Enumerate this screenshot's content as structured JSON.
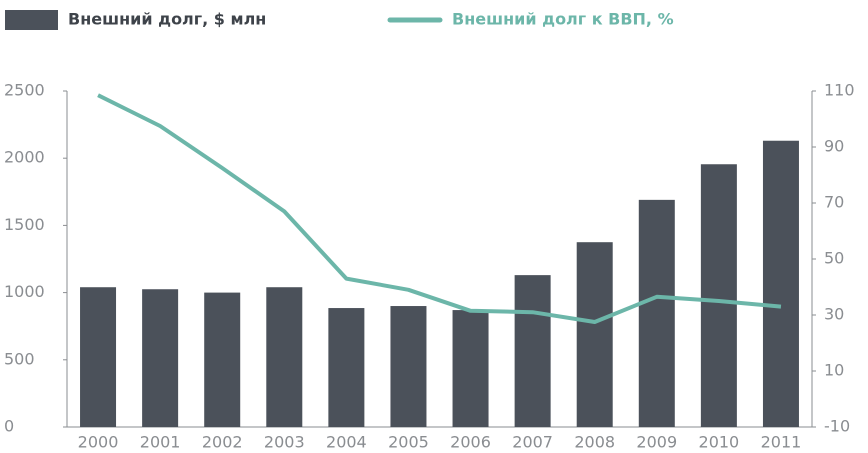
{
  "chart_data": {
    "type": "bar_line",
    "categories": [
      "2000",
      "2001",
      "2002",
      "2003",
      "2004",
      "2005",
      "2006",
      "2007",
      "2008",
      "2009",
      "2010",
      "2011"
    ],
    "series": [
      {
        "name": "Внешний долг, $ млн",
        "type": "bar",
        "color": "#4b515a",
        "values": [
          1040,
          1025,
          1000,
          1040,
          885,
          900,
          870,
          1130,
          1375,
          1690,
          1955,
          2130
        ]
      },
      {
        "name": "Внешний долг к ВВП, %",
        "type": "line",
        "axis": "y2",
        "color": "#6cb6a9",
        "values": [
          108.5,
          97.5,
          82.5,
          67,
          43,
          39,
          31.5,
          31,
          27.5,
          36.5,
          35,
          33
        ]
      }
    ],
    "ylim": [
      0,
      2500
    ],
    "yticks": [
      0,
      500,
      1000,
      1500,
      2000,
      2500
    ],
    "y2lim": [
      -10,
      110
    ],
    "y2ticks": [
      -10,
      10,
      30,
      50,
      70,
      90,
      110
    ]
  }
}
